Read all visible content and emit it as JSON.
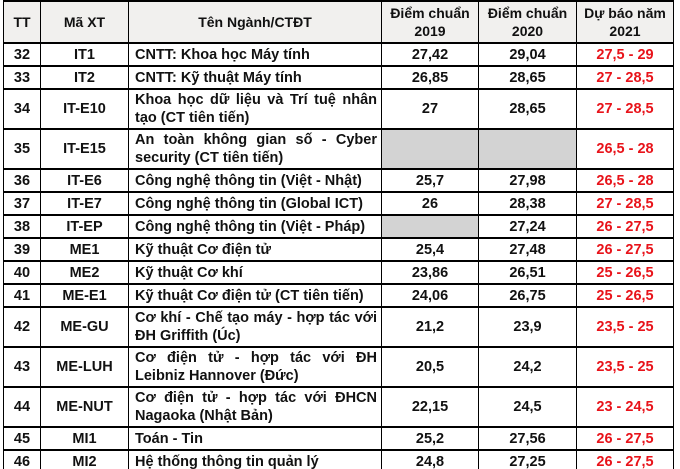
{
  "colors": {
    "forecast_red": "#e8131a",
    "empty_cell_gray": "#d3d3d3",
    "header_bg": "#f1f0ee",
    "cutoff_row_pink": "#f0caca",
    "border_black": "#000000"
  },
  "table": {
    "headers": [
      "TT",
      "Mã XT",
      "Tên Ngành/CTĐT",
      "Điểm chuẩn\n2019",
      "Điểm chuẩn\n2020",
      "Dự báo năm\n2021"
    ],
    "rows": [
      {
        "tt": "32",
        "code": "IT1",
        "name": "CNTT: Khoa học Máy tính",
        "s2019": "27,42",
        "s2020": "29,04",
        "forecast": "27,5 - 29"
      },
      {
        "tt": "33",
        "code": "IT2",
        "name": "CNTT: Kỹ thuật Máy tính",
        "s2019": "26,85",
        "s2020": "28,65",
        "forecast": "27 - 28,5"
      },
      {
        "tt": "34",
        "code": "IT-E10",
        "name": "Khoa học dữ liệu và Trí tuệ nhân tạo (CT tiên tiến)",
        "s2019": "27",
        "s2020": "28,65",
        "forecast": "27 - 28,5"
      },
      {
        "tt": "35",
        "code": "IT-E15",
        "name": "An toàn không gian số - Cyber security (CT tiên tiến)",
        "s2019": "",
        "s2020": "",
        "forecast": "26,5 - 28",
        "gray2019": true,
        "gray2020": true
      },
      {
        "tt": "36",
        "code": "IT-E6",
        "name": "Công nghệ thông tin (Việt - Nhật)",
        "s2019": "25,7",
        "s2020": "27,98",
        "forecast": "26,5 - 28"
      },
      {
        "tt": "37",
        "code": "IT-E7",
        "name": "Công nghệ thông tin (Global ICT)",
        "s2019": "26",
        "s2020": "28,38",
        "forecast": "27 - 28,5"
      },
      {
        "tt": "38",
        "code": "IT-EP",
        "name": "Công nghệ thông tin (Việt - Pháp)",
        "s2019": "",
        "s2020": "27,24",
        "forecast": "26 - 27,5",
        "gray2019": true
      },
      {
        "tt": "39",
        "code": "ME1",
        "name": "Kỹ thuật Cơ điện tử",
        "s2019": "25,4",
        "s2020": "27,48",
        "forecast": "26 - 27,5"
      },
      {
        "tt": "40",
        "code": "ME2",
        "name": "Kỹ thuật Cơ khí",
        "s2019": "23,86",
        "s2020": "26,51",
        "forecast": "25 - 26,5"
      },
      {
        "tt": "41",
        "code": "ME-E1",
        "name": "Kỹ thuật Cơ điện tử (CT tiên tiến)",
        "s2019": "24,06",
        "s2020": "26,75",
        "forecast": "25 - 26,5"
      },
      {
        "tt": "42",
        "code": "ME-GU",
        "name": "Cơ khí - Chế tạo máy - hợp tác với ĐH Griffith (Úc)",
        "s2019": "21,2",
        "s2020": "23,9",
        "forecast": "23,5 - 25"
      },
      {
        "tt": "43",
        "code": "ME-LUH",
        "name": "Cơ điện tử - hợp tác với ĐH Leibniz Hannover (Đức)",
        "s2019": "20,5",
        "s2020": "24,2",
        "forecast": "23,5 - 25"
      },
      {
        "tt": "44",
        "code": "ME-NUT",
        "name": "Cơ điện tử - hợp tác với ĐHCN Nagaoka (Nhật Bản)",
        "s2019": "22,15",
        "s2020": "24,5",
        "forecast": "23 - 24,5"
      },
      {
        "tt": "45",
        "code": "MI1",
        "name": "Toán - Tin",
        "s2019": "25,2",
        "s2020": "27,56",
        "forecast": "26 - 27,5"
      },
      {
        "tt": "46",
        "code": "MI2",
        "name": "Hệ thống thông tin quản lý",
        "s2019": "24,8",
        "s2020": "27,25",
        "forecast": "26 - 27,5"
      }
    ]
  }
}
